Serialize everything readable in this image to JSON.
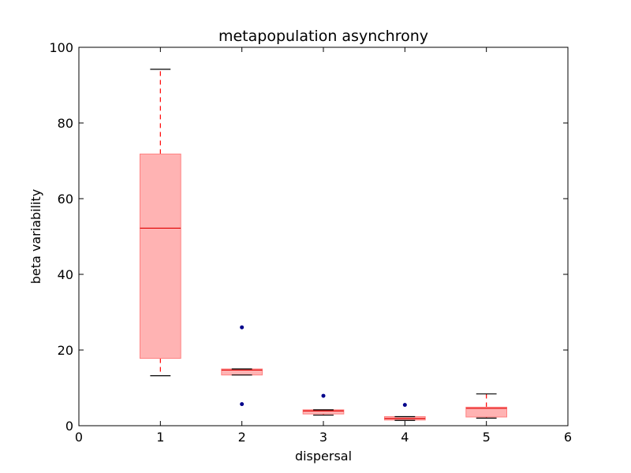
{
  "chart_data": {
    "type": "box",
    "title": "metapopulation asynchrony",
    "xlabel": "dispersal",
    "ylabel": "beta variability",
    "xlim": [
      0,
      6
    ],
    "ylim": [
      0,
      100
    ],
    "xticks": [
      0,
      1,
      2,
      3,
      4,
      5,
      6
    ],
    "yticks": [
      0,
      20,
      40,
      60,
      80,
      100
    ],
    "grid": false,
    "colors": {
      "box_fill": "#ffb3b3",
      "box_edge": "#ff8080",
      "median": "#e00000",
      "whisker": "#ff0000",
      "cap": "#000000",
      "outlier": "#00008b"
    },
    "boxes": [
      {
        "x": 1,
        "whislo": 13.2,
        "q1": 17.8,
        "med": 52.2,
        "q3": 71.8,
        "whishi": 94.2,
        "fliers": []
      },
      {
        "x": 2,
        "whislo": 13.4,
        "q1": 13.4,
        "med": 14.7,
        "q3": 15.0,
        "whishi": 15.0,
        "fliers": [
          26.0,
          5.7
        ]
      },
      {
        "x": 3,
        "whislo": 2.8,
        "q1": 3.1,
        "med": 3.9,
        "q3": 4.2,
        "whishi": 4.2,
        "fliers": [
          7.9
        ]
      },
      {
        "x": 4,
        "whislo": 1.4,
        "q1": 1.5,
        "med": 1.9,
        "q3": 2.4,
        "whishi": 2.4,
        "fliers": [
          5.5
        ]
      },
      {
        "x": 5,
        "whislo": 2.0,
        "q1": 2.3,
        "med": 4.6,
        "q3": 4.9,
        "whishi": 8.4,
        "fliers": []
      }
    ]
  }
}
